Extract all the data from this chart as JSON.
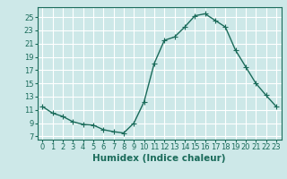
{
  "x": [
    0,
    1,
    2,
    3,
    4,
    5,
    6,
    7,
    8,
    9,
    10,
    11,
    12,
    13,
    14,
    15,
    16,
    17,
    18,
    19,
    20,
    21,
    22,
    23
  ],
  "y": [
    11.5,
    10.5,
    10.0,
    9.2,
    8.8,
    8.7,
    8.0,
    7.7,
    7.5,
    9.0,
    12.2,
    18.0,
    21.5,
    22.0,
    23.5,
    25.2,
    25.5,
    24.5,
    23.5,
    20.0,
    17.5,
    15.0,
    13.2,
    11.5
  ],
  "line_color": "#1a6b5a",
  "bg_color": "#cde8e8",
  "grid_color": "#ffffff",
  "xlabel": "Humidex (Indice chaleur)",
  "ylabel_ticks": [
    7,
    9,
    11,
    13,
    15,
    17,
    19,
    21,
    23,
    25
  ],
  "xlabel_ticks": [
    0,
    1,
    2,
    3,
    4,
    5,
    6,
    7,
    8,
    9,
    10,
    11,
    12,
    13,
    14,
    15,
    16,
    17,
    18,
    19,
    20,
    21,
    22,
    23
  ],
  "xlim": [
    -0.5,
    23.5
  ],
  "ylim": [
    6.5,
    26.5
  ],
  "tick_fontsize": 6,
  "xlabel_fontsize": 7.5,
  "marker": "+",
  "marker_size": 4,
  "line_width": 1.0
}
